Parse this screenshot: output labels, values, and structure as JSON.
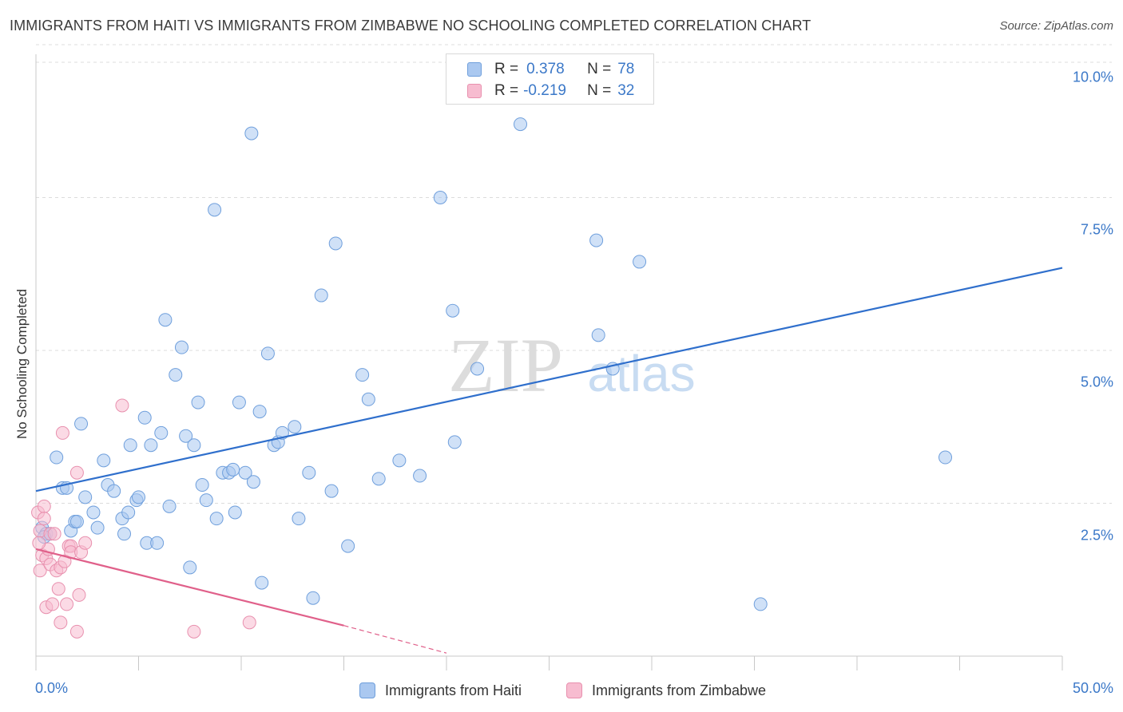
{
  "title": "IMMIGRANTS FROM HAITI VS IMMIGRANTS FROM ZIMBABWE NO SCHOOLING COMPLETED CORRELATION CHART",
  "source": "Source: ZipAtlas.com",
  "watermark": {
    "zip": "ZIP",
    "atlas": "atlas"
  },
  "legend_top": [
    {
      "r_label": "R =",
      "r_value": "0.378",
      "n_label": "N =",
      "n_value": "78"
    },
    {
      "r_label": "R =",
      "r_value": "-0.219",
      "n_label": "N =",
      "n_value": "32"
    }
  ],
  "colors": {
    "haiti_fill": "#aac8f0",
    "haiti_stroke": "#6f9fdc",
    "haiti_line": "#2f6fcc",
    "zimbabwe_fill": "#f7bcd0",
    "zimbabwe_stroke": "#e890ae",
    "zimbabwe_line": "#e0608a",
    "tick_text": "#3b78c8",
    "grid": "#dcdcdc"
  },
  "chart_data": {
    "type": "scatter",
    "title": "IMMIGRANTS FROM HAITI VS IMMIGRANTS FROM ZIMBABWE NO SCHOOLING COMPLETED CORRELATION CHART",
    "xlabel": "",
    "ylabel": "No Schooling Completed",
    "xlim": [
      0,
      50
    ],
    "ylim": [
      0,
      10.5
    ],
    "x_tick_labels": [
      "0.0%",
      "50.0%"
    ],
    "y_ticks": [
      2.5,
      5.0,
      7.5,
      10.0
    ],
    "y_tick_labels": [
      "2.5%",
      "5.0%",
      "7.5%",
      "10.0%"
    ],
    "grid": "horizontal dashed",
    "legend_position": "bottom-center",
    "series": [
      {
        "name": "Immigrants from Haiti",
        "R": 0.378,
        "N": 78,
        "trend": {
          "x": [
            0,
            50
          ],
          "y": [
            2.7,
            6.35
          ]
        },
        "points": [
          [
            0.3,
            2.1
          ],
          [
            0.5,
            2.0
          ],
          [
            0.7,
            2.0
          ],
          [
            1.0,
            3.25
          ],
          [
            1.3,
            2.75
          ],
          [
            1.5,
            2.75
          ],
          [
            1.7,
            2.05
          ],
          [
            1.9,
            2.2
          ],
          [
            2.2,
            3.8
          ],
          [
            2.4,
            2.6
          ],
          [
            2.8,
            2.35
          ],
          [
            3.0,
            2.1
          ],
          [
            3.3,
            3.2
          ],
          [
            3.5,
            2.8
          ],
          [
            3.8,
            2.7
          ],
          [
            4.2,
            2.25
          ],
          [
            4.3,
            2.0
          ],
          [
            4.5,
            2.35
          ],
          [
            4.6,
            3.45
          ],
          [
            4.9,
            2.55
          ],
          [
            5.0,
            2.6
          ],
          [
            5.3,
            3.9
          ],
          [
            5.4,
            1.85
          ],
          [
            5.6,
            3.45
          ],
          [
            5.9,
            1.85
          ],
          [
            6.1,
            3.65
          ],
          [
            6.3,
            5.5
          ],
          [
            6.5,
            2.45
          ],
          [
            6.8,
            4.6
          ],
          [
            7.1,
            5.05
          ],
          [
            7.3,
            3.6
          ],
          [
            7.5,
            1.45
          ],
          [
            7.7,
            3.45
          ],
          [
            7.9,
            4.15
          ],
          [
            8.1,
            2.8
          ],
          [
            8.3,
            2.55
          ],
          [
            8.7,
            7.3
          ],
          [
            8.8,
            2.25
          ],
          [
            9.1,
            3.0
          ],
          [
            9.4,
            3.0
          ],
          [
            9.6,
            3.05
          ],
          [
            9.7,
            2.35
          ],
          [
            9.9,
            4.15
          ],
          [
            10.2,
            3.0
          ],
          [
            10.5,
            8.55
          ],
          [
            10.6,
            2.85
          ],
          [
            10.9,
            4.0
          ],
          [
            11.0,
            1.2
          ],
          [
            11.3,
            4.95
          ],
          [
            11.6,
            3.45
          ],
          [
            11.8,
            3.5
          ],
          [
            12.0,
            3.65
          ],
          [
            12.6,
            3.75
          ],
          [
            12.8,
            2.25
          ],
          [
            13.3,
            3.0
          ],
          [
            13.5,
            0.95
          ],
          [
            13.9,
            5.9
          ],
          [
            14.4,
            2.7
          ],
          [
            14.6,
            6.75
          ],
          [
            15.2,
            1.8
          ],
          [
            15.9,
            4.6
          ],
          [
            16.2,
            4.2
          ],
          [
            16.7,
            2.9
          ],
          [
            17.7,
            3.2
          ],
          [
            18.7,
            2.95
          ],
          [
            19.7,
            7.5
          ],
          [
            20.3,
            5.65
          ],
          [
            20.4,
            3.5
          ],
          [
            21.5,
            4.7
          ],
          [
            23.6,
            8.7
          ],
          [
            27.3,
            6.8
          ],
          [
            27.4,
            5.25
          ],
          [
            28.1,
            4.7
          ],
          [
            29.4,
            6.45
          ],
          [
            35.3,
            0.85
          ],
          [
            44.3,
            3.25
          ],
          [
            0.4,
            1.95
          ],
          [
            2.0,
            2.2
          ]
        ]
      },
      {
        "name": "Immigrants from Zimbabwe",
        "R": -0.219,
        "N": 32,
        "trend": {
          "x": [
            0,
            15
          ],
          "y": [
            1.75,
            0.5
          ]
        },
        "trend_dashed": {
          "x": [
            15,
            20
          ],
          "y": [
            0.5,
            0.05
          ]
        },
        "points": [
          [
            0.1,
            2.35
          ],
          [
            0.2,
            2.05
          ],
          [
            0.2,
            1.4
          ],
          [
            0.3,
            1.65
          ],
          [
            0.4,
            2.45
          ],
          [
            0.4,
            2.25
          ],
          [
            0.5,
            1.6
          ],
          [
            0.5,
            0.8
          ],
          [
            0.6,
            1.75
          ],
          [
            0.7,
            1.5
          ],
          [
            0.7,
            2.0
          ],
          [
            0.8,
            0.85
          ],
          [
            0.9,
            2.0
          ],
          [
            1.0,
            1.4
          ],
          [
            1.1,
            1.1
          ],
          [
            1.2,
            1.45
          ],
          [
            1.2,
            0.55
          ],
          [
            1.3,
            3.65
          ],
          [
            1.4,
            1.55
          ],
          [
            1.5,
            0.85
          ],
          [
            1.6,
            1.8
          ],
          [
            1.7,
            1.8
          ],
          [
            1.7,
            1.7
          ],
          [
            2.0,
            0.4
          ],
          [
            2.0,
            3.0
          ],
          [
            2.1,
            1.0
          ],
          [
            2.2,
            1.7
          ],
          [
            2.4,
            1.85
          ],
          [
            4.2,
            4.1
          ],
          [
            7.7,
            0.4
          ],
          [
            10.4,
            0.55
          ],
          [
            0.15,
            1.85
          ]
        ]
      }
    ]
  },
  "legend_bottom": [
    {
      "label": "Immigrants from Haiti"
    },
    {
      "label": "Immigrants from Zimbabwe"
    }
  ]
}
